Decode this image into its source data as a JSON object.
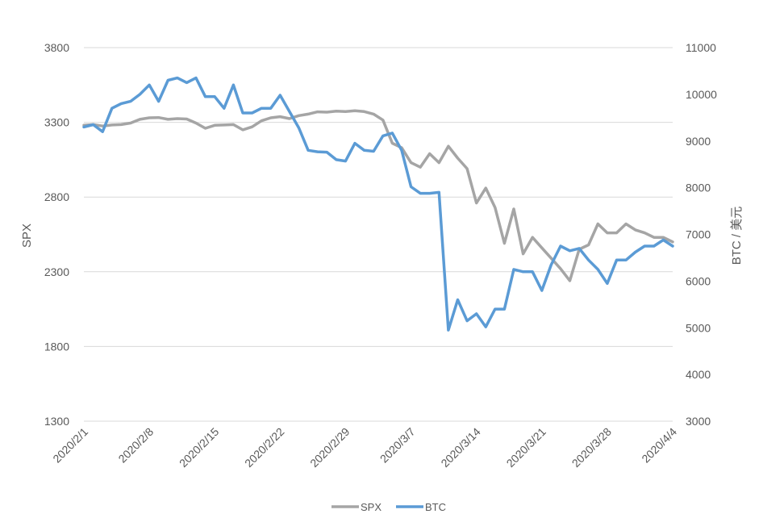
{
  "chart_data": {
    "type": "line",
    "title": "",
    "xlabel": "",
    "ylabel": "SPX",
    "y2label": "BTC / 美元",
    "x": [
      "2020/2/1",
      "2020/2/2",
      "2020/2/3",
      "2020/2/4",
      "2020/2/5",
      "2020/2/6",
      "2020/2/7",
      "2020/2/8",
      "2020/2/9",
      "2020/2/10",
      "2020/2/11",
      "2020/2/12",
      "2020/2/13",
      "2020/2/14",
      "2020/2/15",
      "2020/2/16",
      "2020/2/17",
      "2020/2/18",
      "2020/2/19",
      "2020/2/20",
      "2020/2/21",
      "2020/2/22",
      "2020/2/23",
      "2020/2/24",
      "2020/2/25",
      "2020/2/26",
      "2020/2/27",
      "2020/2/28",
      "2020/2/29",
      "2020/3/1",
      "2020/3/2",
      "2020/3/3",
      "2020/3/4",
      "2020/3/5",
      "2020/3/6",
      "2020/3/7",
      "2020/3/8",
      "2020/3/9",
      "2020/3/10",
      "2020/3/11",
      "2020/3/12",
      "2020/3/13",
      "2020/3/14",
      "2020/3/15",
      "2020/3/16",
      "2020/3/17",
      "2020/3/18",
      "2020/3/19",
      "2020/3/20",
      "2020/3/21",
      "2020/3/22",
      "2020/3/23",
      "2020/3/24",
      "2020/3/25",
      "2020/3/26",
      "2020/3/27",
      "2020/3/28",
      "2020/3/29",
      "2020/3/30",
      "2020/3/31",
      "2020/4/1",
      "2020/4/2",
      "2020/4/3",
      "2020/4/4"
    ],
    "x_tick_labels": [
      "2020/2/1",
      "2020/2/8",
      "2020/2/15",
      "2020/2/22",
      "2020/2/29",
      "2020/3/7",
      "2020/3/14",
      "2020/3/21",
      "2020/3/28",
      "2020/4/4"
    ],
    "ylim": [
      1300,
      3800
    ],
    "y_ticks": [
      1300,
      1800,
      2300,
      2800,
      3300,
      3800
    ],
    "y2lim": [
      3000,
      11000
    ],
    "y2_ticks": [
      3000,
      4000,
      5000,
      6000,
      7000,
      8000,
      9000,
      10000,
      11000
    ],
    "grid": true,
    "legend_position": "bottom",
    "series": [
      {
        "name": "SPX",
        "axis": "left",
        "color": "#a5a5a5",
        "values": [
          3280,
          3285,
          3275,
          3282,
          3285,
          3295,
          3320,
          3330,
          3332,
          3320,
          3325,
          3322,
          3295,
          3260,
          3280,
          3282,
          3285,
          3250,
          3270,
          3310,
          3330,
          3338,
          3325,
          3345,
          3355,
          3370,
          3368,
          3375,
          3372,
          3378,
          3372,
          3355,
          3315,
          3160,
          3130,
          3030,
          3000,
          3090,
          3030,
          3140,
          3060,
          2990,
          2760,
          2860,
          2730,
          2490,
          2720,
          2420,
          2530,
          2460,
          2390,
          2320,
          2240,
          2450,
          2480,
          2620,
          2560,
          2560,
          2620,
          2580,
          2560,
          2530,
          2530,
          2500
        ]
      },
      {
        "name": "BTC",
        "axis": "right",
        "color": "#5b9bd5",
        "values": [
          9300,
          9350,
          9200,
          9700,
          9800,
          9850,
          10000,
          10200,
          9850,
          10300,
          10350,
          10250,
          10350,
          9950,
          9950,
          9700,
          10200,
          9600,
          9600,
          9700,
          9700,
          9980,
          9630,
          9280,
          8800,
          8770,
          8760,
          8600,
          8570,
          8950,
          8800,
          8780,
          9110,
          9170,
          8800,
          8020,
          7880,
          7880,
          7900,
          4950,
          5600,
          5150,
          5300,
          5020,
          5400,
          5400,
          6250,
          6200,
          6200,
          5800,
          6350,
          6750,
          6650,
          6700,
          6450,
          6250,
          5950,
          6450,
          6450,
          6620,
          6750,
          6750,
          6880,
          6750
        ]
      }
    ]
  }
}
